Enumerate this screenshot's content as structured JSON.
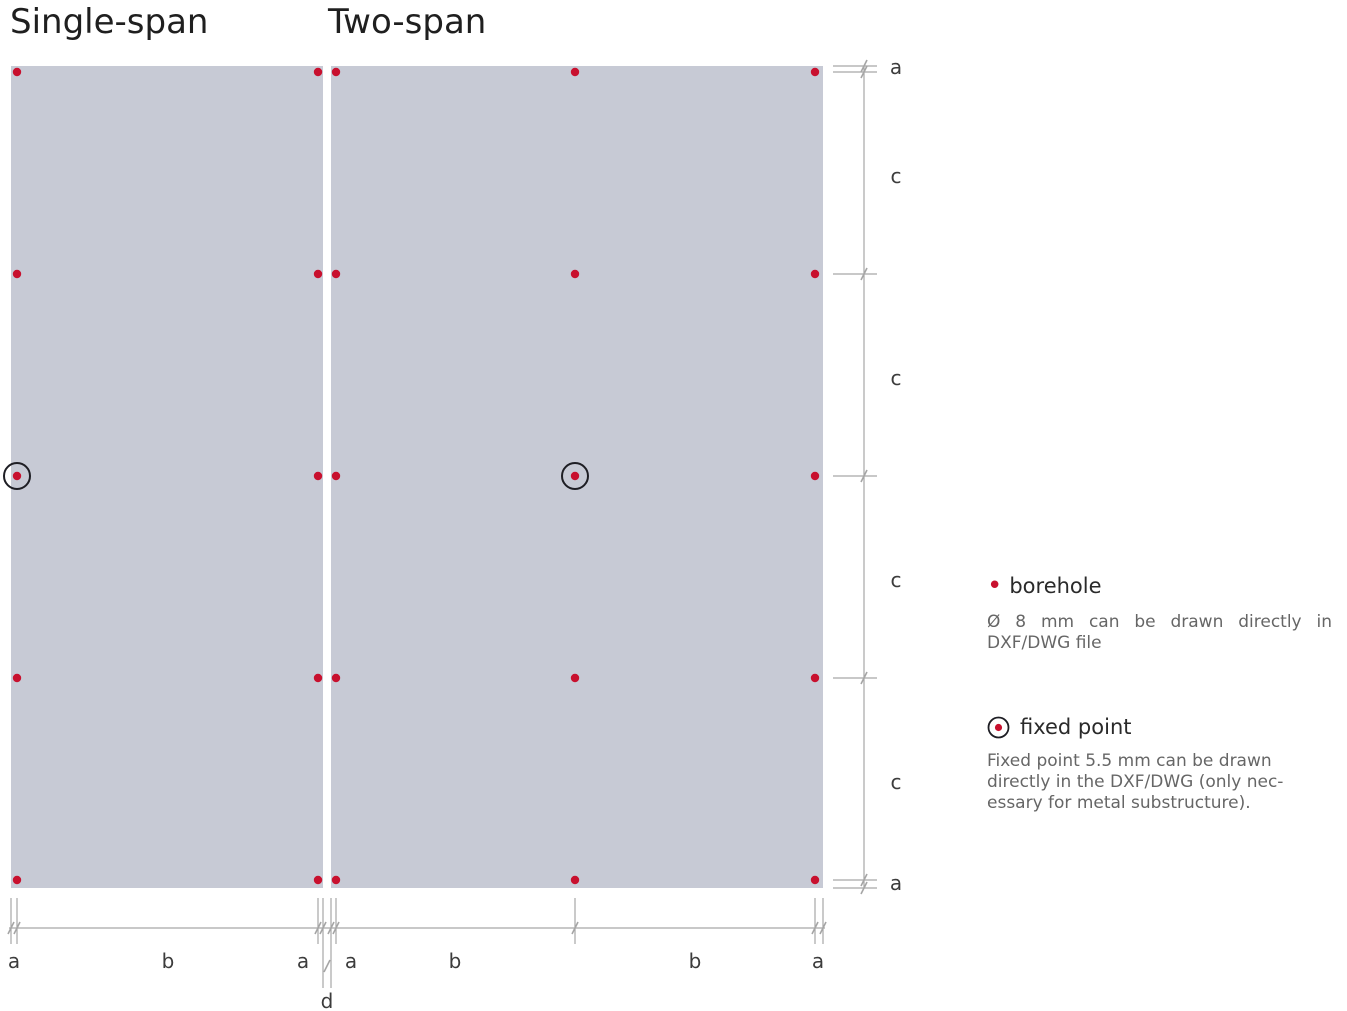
{
  "titles": {
    "single": "Single-span",
    "two": "Two-span"
  },
  "dimensions": {
    "a": "a",
    "b": "b",
    "c": "c",
    "d": "d"
  },
  "legend": {
    "borehole": {
      "title": "borehole",
      "description": "Ø 8 mm can be drawn directly in DXF/DWG file"
    },
    "fixed_point": {
      "title": "fixed point",
      "description": "Fixed point 5.5 mm can be drawn directly in the DXF/DWG (only nec­essary for metal substructure)."
    }
  },
  "colors": {
    "panel": "#c7cad5",
    "borehole": "#c8102e",
    "fixed_ring": "#1e1e24",
    "dimension_line": "#a6a6a6"
  }
}
